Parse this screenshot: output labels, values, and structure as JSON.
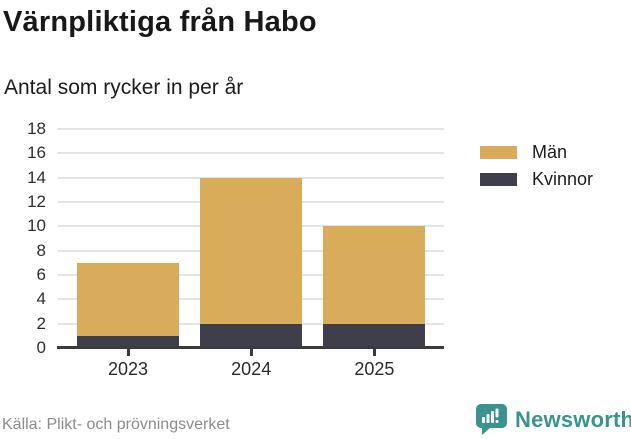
{
  "title": "Värnpliktiga från Habo",
  "subtitle": "Antal som rycker in per år",
  "source": "Källa: Plikt- och prövningsverket",
  "brand": {
    "name": "Newsworthy",
    "color": "#3A948D",
    "icon": "bar-chart-speech-bubble-icon"
  },
  "chart_data": {
    "type": "bar",
    "stacked": true,
    "title": "Värnpliktiga från Habo",
    "subtitle": "Antal som rycker in per år",
    "categories": [
      "2023",
      "2024",
      "2025"
    ],
    "series": [
      {
        "name": "Män",
        "color": "#D9AC5C",
        "values": [
          6,
          12,
          8
        ]
      },
      {
        "name": "Kvinnor",
        "color": "#3F3E4B",
        "values": [
          1,
          2,
          2
        ]
      }
    ],
    "stack_bottom_to_top": [
      "Kvinnor",
      "Män"
    ],
    "totals": [
      7,
      14,
      10
    ],
    "xlabel": "",
    "ylabel": "",
    "ylim": [
      0,
      18
    ],
    "yticks": [
      0,
      2,
      4,
      6,
      8,
      10,
      12,
      14,
      16,
      18
    ],
    "grid": true,
    "gridline_color": "#e4e4e4",
    "axis_color": "#3b3b3f",
    "legend_position": "right"
  }
}
